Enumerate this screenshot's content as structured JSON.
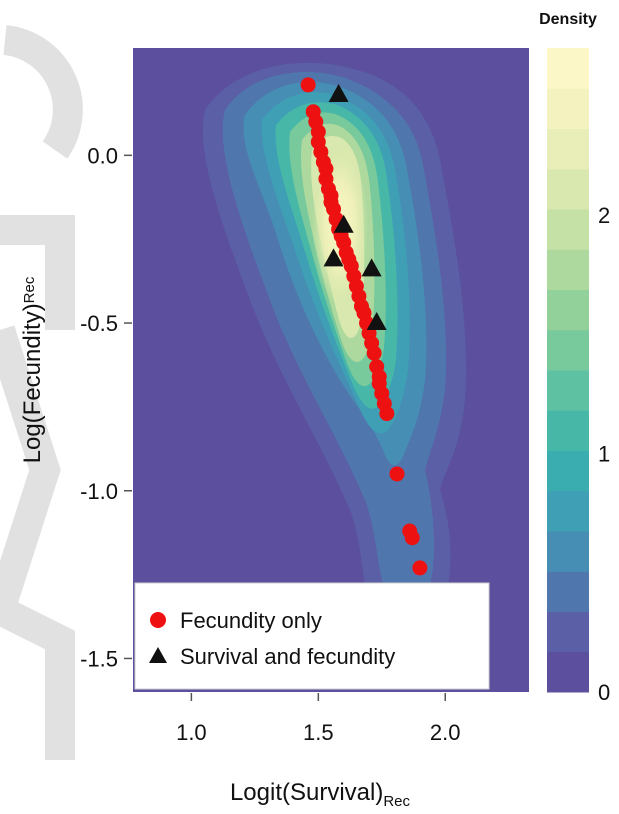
{
  "chart_data": {
    "type": "scatter",
    "xlabel": {
      "main": "Logit(Survival)",
      "sub": "Rec"
    },
    "ylabel": {
      "main": "Log(Fecundity)",
      "sub": "Rec"
    },
    "xlim": [
      0.77,
      2.33
    ],
    "ylim": [
      -1.6,
      0.32
    ],
    "x_ticks": [
      1.0,
      1.5,
      2.0
    ],
    "x_tick_labels": [
      "1.0",
      "1.5",
      "2.0"
    ],
    "y_ticks": [
      0.0,
      -0.5,
      -1.0,
      -1.5
    ],
    "y_tick_labels": [
      "0.0",
      "-0.5",
      "-1.0",
      "-1.5"
    ],
    "grid": false,
    "background": "density-contour",
    "colorbar": {
      "title": "Density",
      "range": [
        0,
        2.7
      ],
      "ticks": [
        0,
        1,
        2
      ],
      "tick_labels": [
        "0",
        "1",
        "2"
      ],
      "levels": [
        "#5b4f9e",
        "#5a5fa6",
        "#4f77ad",
        "#468eb4",
        "#3e9fb5",
        "#3aadb0",
        "#47b7a8",
        "#5ec1a1",
        "#78c99b",
        "#93d19a",
        "#add99e",
        "#c5e1a5",
        "#d9e8ae",
        "#e9eeb8",
        "#f4f3c0",
        "#fbf7c6"
      ]
    },
    "legend": {
      "placement": "bottom-left",
      "entries": [
        {
          "label": "Fecundity only",
          "marker": "circle",
          "color": "#ee1111"
        },
        {
          "label": "Survival and fecundity",
          "marker": "triangle",
          "color": "#111111"
        }
      ]
    },
    "series": [
      {
        "name": "Fecundity only",
        "marker": "circle",
        "color": "#ee1111",
        "points": [
          [
            1.46,
            0.21
          ],
          [
            1.48,
            0.13
          ],
          [
            1.49,
            0.1
          ],
          [
            1.5,
            0.07
          ],
          [
            1.5,
            0.04
          ],
          [
            1.51,
            0.01
          ],
          [
            1.52,
            -0.02
          ],
          [
            1.53,
            -0.04
          ],
          [
            1.53,
            -0.07
          ],
          [
            1.54,
            -0.1
          ],
          [
            1.55,
            -0.12
          ],
          [
            1.55,
            -0.14
          ],
          [
            1.56,
            -0.16
          ],
          [
            1.57,
            -0.19
          ],
          [
            1.58,
            -0.22
          ],
          [
            1.59,
            -0.24
          ],
          [
            1.6,
            -0.26
          ],
          [
            1.61,
            -0.29
          ],
          [
            1.62,
            -0.31
          ],
          [
            1.63,
            -0.33
          ],
          [
            1.64,
            -0.36
          ],
          [
            1.65,
            -0.39
          ],
          [
            1.66,
            -0.42
          ],
          [
            1.67,
            -0.45
          ],
          [
            1.68,
            -0.47
          ],
          [
            1.69,
            -0.5
          ],
          [
            1.7,
            -0.53
          ],
          [
            1.71,
            -0.56
          ],
          [
            1.72,
            -0.59
          ],
          [
            1.73,
            -0.63
          ],
          [
            1.74,
            -0.66
          ],
          [
            1.74,
            -0.68
          ],
          [
            1.75,
            -0.71
          ],
          [
            1.76,
            -0.74
          ],
          [
            1.77,
            -0.77
          ],
          [
            1.81,
            -0.95
          ],
          [
            1.86,
            -1.12
          ],
          [
            1.87,
            -1.14
          ],
          [
            1.9,
            -1.23
          ]
        ]
      },
      {
        "name": "Survival and fecundity",
        "marker": "triangle",
        "color": "#111111",
        "points": [
          [
            1.58,
            0.18
          ],
          [
            1.6,
            -0.21
          ],
          [
            1.56,
            -0.31
          ],
          [
            1.71,
            -0.34
          ],
          [
            1.73,
            -0.5
          ]
        ]
      }
    ]
  },
  "watermark_color": "#dedede"
}
